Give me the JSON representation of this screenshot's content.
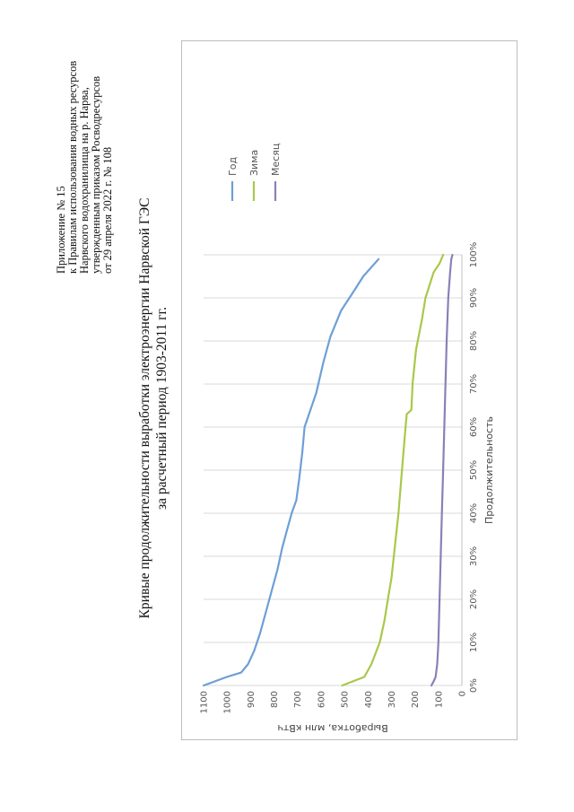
{
  "approval": {
    "line1": "Приложение № 15",
    "line2": "к Правилам использования водных ресурсов",
    "line3": "Нарвского водохранилища на р. Нарва,",
    "line4": "утвержденным приказом Росводресурсов",
    "line5": "от 29 апреля 2022 г. № 108"
  },
  "title": {
    "line1": "Кривые продолжительности выработки электроэнергии Нарвской ГЭС",
    "line2": "за расчетный период 1903-2011 гг."
  },
  "chart_data": {
    "type": "line",
    "title": "Кривые продолжительности выработки электроэнергии Нарвской ГЭС за расчетный период 1903-2011 гг.",
    "xlabel": "Продолжительность",
    "ylabel": "Выработка, млн кВтч",
    "xlim": [
      0,
      100
    ],
    "ylim": [
      0,
      1100
    ],
    "x_ticks": [
      "0%",
      "10%",
      "20%",
      "30%",
      "40%",
      "50%",
      "60%",
      "70%",
      "80%",
      "90%",
      "100%"
    ],
    "y_ticks": [
      "0",
      "100",
      "200",
      "300",
      "400",
      "500",
      "600",
      "700",
      "800",
      "900",
      "1000",
      "1100"
    ],
    "legend_position": "top-right",
    "grid": "vertical",
    "series": [
      {
        "name": "Год",
        "color": "#6e9fd6",
        "x": [
          0,
          2,
          3,
          5,
          8,
          12,
          17,
          22,
          27,
          32,
          36,
          40,
          43,
          48,
          54,
          60,
          68,
          75,
          81,
          87,
          92,
          95,
          99
        ],
        "y": [
          1100,
          1000,
          940,
          910,
          885,
          860,
          835,
          810,
          785,
          765,
          745,
          725,
          705,
          693,
          680,
          670,
          620,
          590,
          560,
          515,
          455,
          420,
          355
        ]
      },
      {
        "name": "Зима",
        "color": "#a9c84a",
        "x": [
          0,
          2,
          5,
          10,
          15,
          20,
          25,
          30,
          40,
          50,
          60,
          63,
          64,
          70,
          78,
          85,
          90,
          96,
          98,
          100
        ],
        "y": [
          510,
          415,
          385,
          350,
          330,
          315,
          300,
          290,
          270,
          255,
          240,
          235,
          215,
          210,
          195,
          170,
          155,
          120,
          95,
          80
        ]
      },
      {
        "name": "Месяц",
        "color": "#8a80b8",
        "x": [
          0,
          1,
          2,
          5,
          10,
          20,
          30,
          40,
          50,
          60,
          70,
          80,
          90,
          96,
          99,
          100
        ],
        "y": [
          130,
          120,
          112,
          105,
          100,
          95,
          90,
          85,
          80,
          75,
          70,
          65,
          58,
          50,
          45,
          40
        ]
      }
    ]
  }
}
